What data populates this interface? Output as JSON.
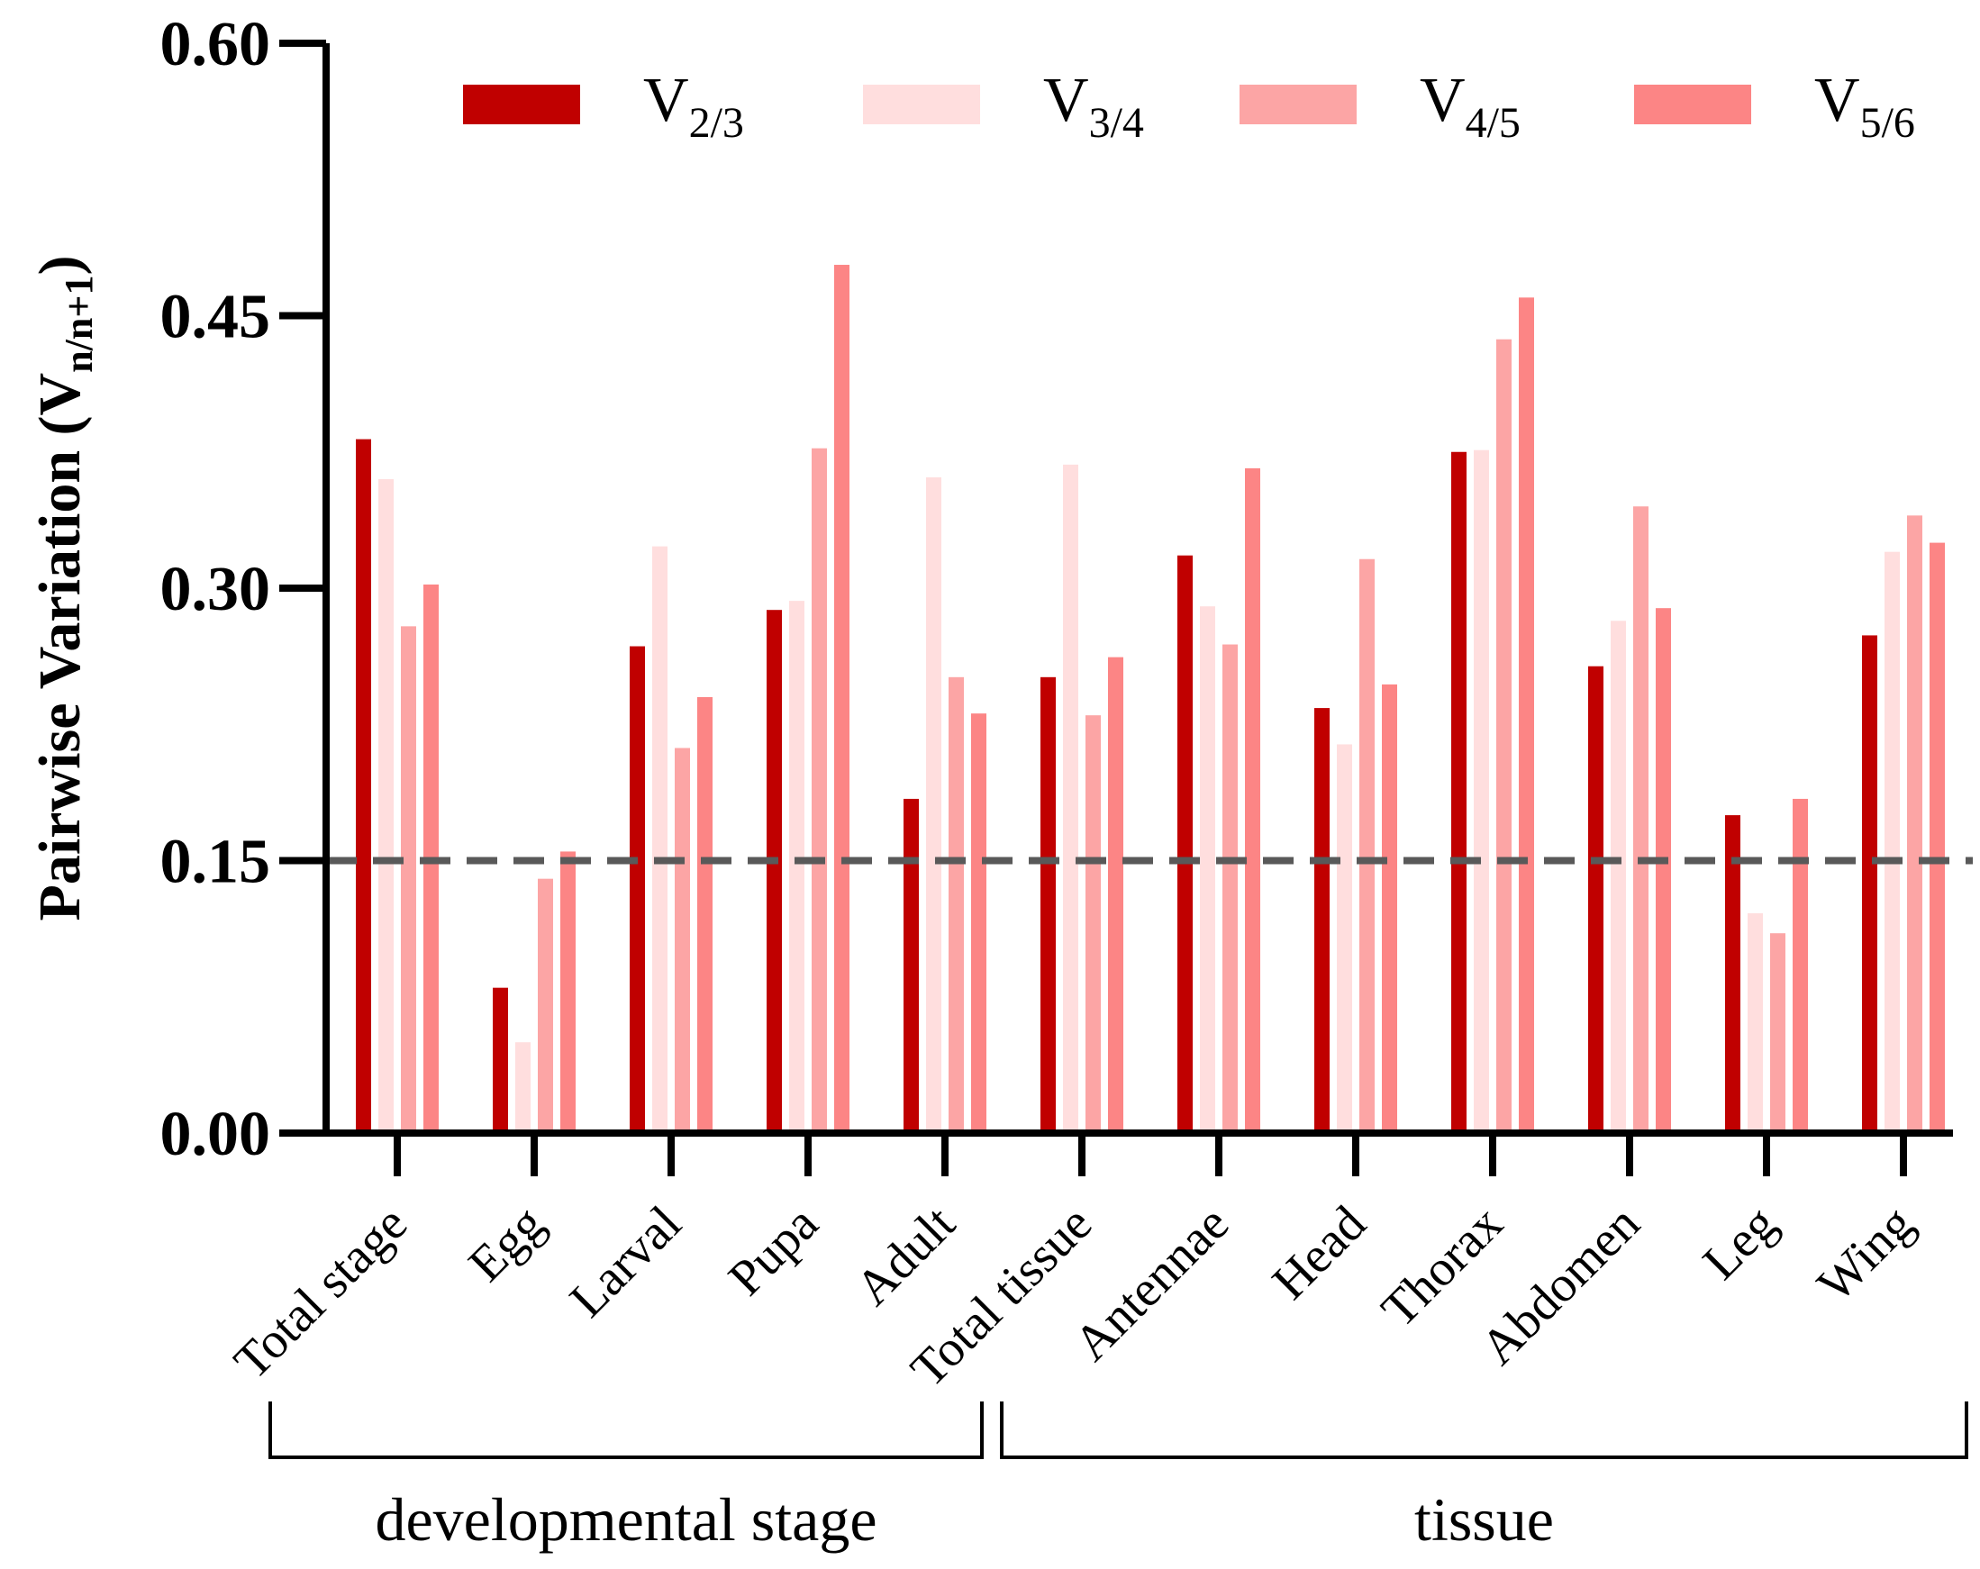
{
  "chart_data": {
    "type": "bar",
    "title": "",
    "ylabel": "Pairwise Variation",
    "ylabel_paren_open": "(V",
    "ylabel_sub": "n/n+1",
    "ylabel_paren_close": ")",
    "xlabel": "",
    "ylim": [
      0,
      0.6
    ],
    "yticks": [
      "0.00",
      "0.15",
      "0.30",
      "0.45",
      "0.60"
    ],
    "threshold": 0.15,
    "categories": [
      "Total stage",
      "Egg",
      "Larval",
      "Pupa",
      "Adult",
      "Total tissue",
      "Antennae",
      "Head",
      "Thorax",
      "Abdomen",
      "Leg",
      "Wing"
    ],
    "groups": [
      {
        "label": "developmental stage",
        "from": 0,
        "to": 4
      },
      {
        "label": "tissue",
        "from": 5,
        "to": 11
      }
    ],
    "series": [
      {
        "name": "V",
        "sub": "2/3",
        "color": "#c00000",
        "values": [
          0.382,
          0.08,
          0.268,
          0.288,
          0.184,
          0.251,
          0.318,
          0.234,
          0.375,
          0.257,
          0.175,
          0.274
        ]
      },
      {
        "name": "V",
        "sub": "3/4",
        "color": "#ffdede",
        "values": [
          0.36,
          0.05,
          0.323,
          0.293,
          0.361,
          0.368,
          0.29,
          0.214,
          0.376,
          0.282,
          0.121,
          0.32
        ]
      },
      {
        "name": "V",
        "sub": "4/5",
        "color": "#fca5a5",
        "values": [
          0.279,
          0.14,
          0.212,
          0.377,
          0.251,
          0.23,
          0.269,
          0.316,
          0.437,
          0.345,
          0.11,
          0.34
        ]
      },
      {
        "name": "V",
        "sub": "5/6",
        "color": "#fc8585",
        "values": [
          0.302,
          0.155,
          0.24,
          0.478,
          0.231,
          0.262,
          0.366,
          0.247,
          0.46,
          0.289,
          0.184,
          0.325
        ]
      }
    ]
  }
}
